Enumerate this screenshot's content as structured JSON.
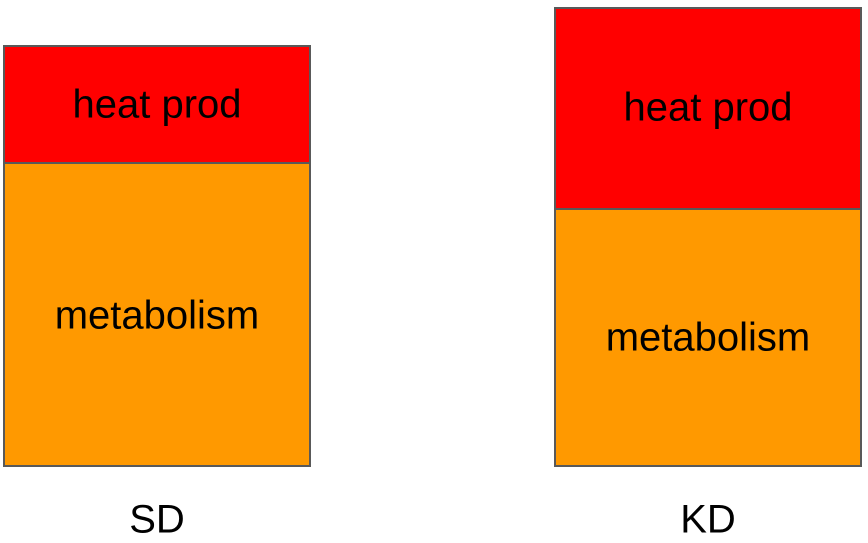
{
  "columns": [
    {
      "label": "SD",
      "top": "heat prod",
      "bottom": "metabolism"
    },
    {
      "label": "KD",
      "top": "heat prod",
      "bottom": "metabolism"
    }
  ]
}
